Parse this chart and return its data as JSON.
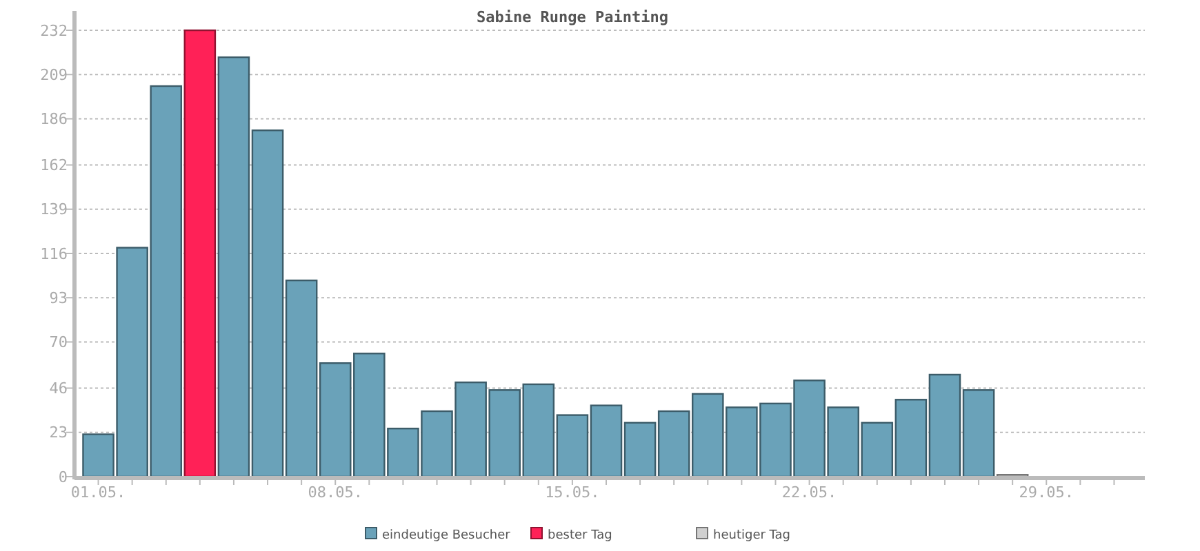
{
  "chart_data": {
    "type": "bar",
    "title": "Sabine Runge Painting",
    "categories": [
      "01.05.",
      null,
      null,
      null,
      null,
      null,
      null,
      "08.05.",
      null,
      null,
      null,
      null,
      null,
      null,
      "15.05.",
      null,
      null,
      null,
      null,
      null,
      null,
      "22.05.",
      null,
      null,
      null,
      null,
      null,
      null,
      "29.05.",
      null,
      null
    ],
    "series": [
      {
        "name": "eindeutige Besucher",
        "color": "#6aa2b9",
        "values": [
          22,
          119,
          203,
          null,
          218,
          180,
          102,
          59,
          64,
          25,
          34,
          49,
          45,
          48,
          32,
          37,
          28,
          34,
          43,
          36,
          38,
          50,
          36,
          28,
          40,
          53,
          45,
          null,
          null,
          null,
          null
        ]
      },
      {
        "name": "bester Tag",
        "color": "#ff2157",
        "values": [
          null,
          null,
          null,
          232,
          null,
          null,
          null,
          null,
          null,
          null,
          null,
          null,
          null,
          null,
          null,
          null,
          null,
          null,
          null,
          null,
          null,
          null,
          null,
          null,
          null,
          null,
          null,
          null,
          null,
          null,
          null
        ]
      },
      {
        "name": "heutiger Tag",
        "color": "#d0d0d0",
        "values": [
          null,
          null,
          null,
          null,
          null,
          null,
          null,
          null,
          null,
          null,
          null,
          null,
          null,
          null,
          null,
          null,
          null,
          null,
          null,
          null,
          null,
          null,
          null,
          null,
          null,
          null,
          null,
          1,
          null,
          null,
          null
        ]
      }
    ],
    "ylim": [
      0,
      232
    ],
    "yticks": [
      0,
      23,
      46,
      70,
      93,
      116,
      139,
      162,
      186,
      209,
      232
    ],
    "grid": "y",
    "legend": "bottom"
  }
}
